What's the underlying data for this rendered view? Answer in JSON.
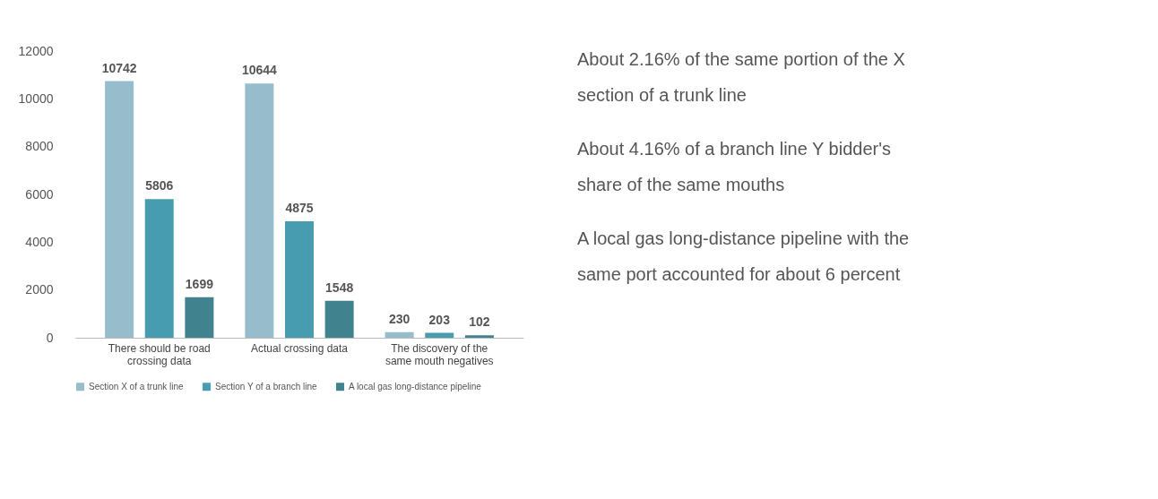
{
  "chart_data": {
    "type": "bar",
    "categories": [
      "There should be road crossing data",
      "Actual crossing data",
      "The discovery of the same mouth negatives"
    ],
    "series": [
      {
        "name": "Section X of a trunk line",
        "color": "#97bccb",
        "values": [
          10742,
          10644,
          230
        ]
      },
      {
        "name": "Section Y of a branch line",
        "color": "#479cb0",
        "values": [
          5806,
          4875,
          203
        ]
      },
      {
        "name": "A local gas long-distance pipeline",
        "color": "#41828f",
        "values": [
          1699,
          1548,
          102
        ]
      }
    ],
    "ylim": [
      0,
      12000
    ],
    "yticks": [
      0,
      2000,
      4000,
      6000,
      8000,
      10000,
      12000
    ],
    "data_labels": true,
    "grid": false,
    "legend": "bottom",
    "annotations": [
      "About 2.16% of the same portion of the X section of a trunk line",
      "About 4.16% of a branch line Y bidder's share of the same mouths",
      "A local gas long-distance pipeline with the same port accounted for about 6 percent"
    ]
  }
}
